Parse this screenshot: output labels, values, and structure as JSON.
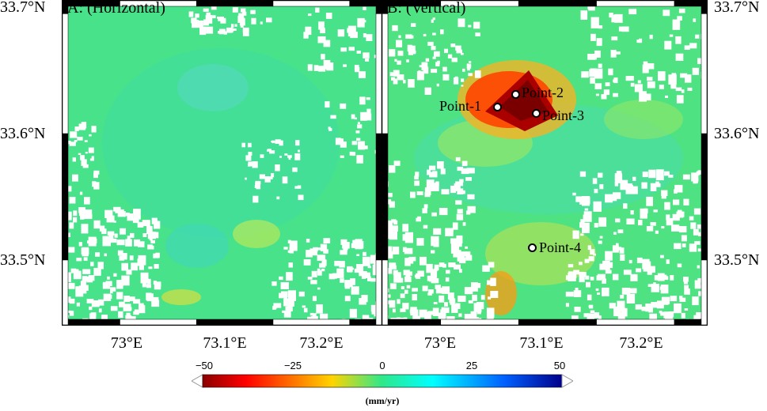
{
  "panels": [
    {
      "id": "A",
      "title": "A: (Horizontal)",
      "points": []
    },
    {
      "id": "B",
      "title": "B: (Vertical)",
      "points": [
        {
          "label": "Point-1",
          "lon": 73.06,
          "lat": 33.621
        },
        {
          "label": "Point-2",
          "lon": 73.078,
          "lat": 33.63
        },
        {
          "label": "Point-3",
          "lon": 73.097,
          "lat": 33.616
        },
        {
          "label": "Point-4",
          "lon": 73.094,
          "lat": 33.509
        }
      ]
    }
  ],
  "axes": {
    "lat_labels": [
      "33.7°N",
      "33.6°N",
      "33.5°N"
    ],
    "lon_labels": [
      "73°E",
      "73.1°E",
      "73.2°E"
    ],
    "lat_range": [
      33.448,
      33.705
    ],
    "lon_range": [
      72.95,
      73.255
    ]
  },
  "colorbar": {
    "ticks": [
      "−50",
      "−25",
      "0",
      "25",
      "50"
    ],
    "values": [
      -50,
      -25,
      0,
      25,
      50
    ],
    "unit": "(mm/yr)",
    "colors": [
      "#8b0000",
      "#ff0000",
      "#ffd400",
      "#2ee88a",
      "#00ffff",
      "#0060ff",
      "#00008b"
    ]
  }
}
